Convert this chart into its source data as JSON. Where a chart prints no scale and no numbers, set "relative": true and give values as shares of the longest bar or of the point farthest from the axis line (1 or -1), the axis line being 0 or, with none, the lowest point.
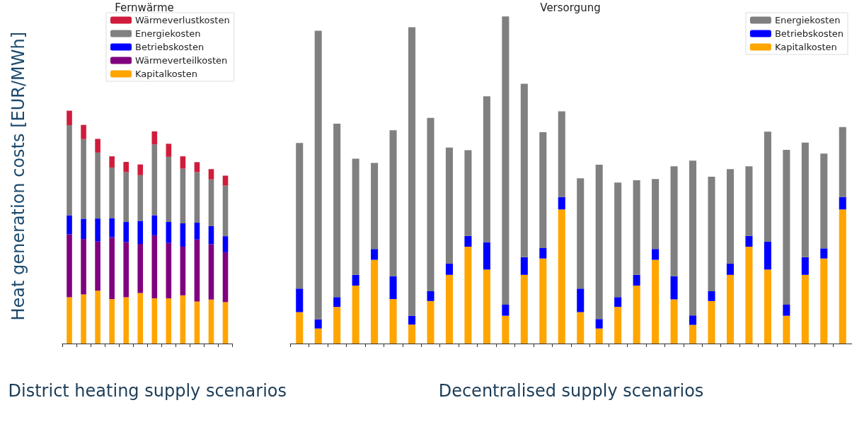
{
  "chart_data": [
    {
      "type": "bar",
      "title": "Fernwärme",
      "ylabel": "Heat generation costs [EUR/MWh]",
      "xlabel": "District heating supply scenarios",
      "categories": [
        null,
        null,
        null,
        null,
        null,
        null,
        null,
        null,
        null,
        null,
        null,
        null
      ],
      "stacked": true,
      "relative": true,
      "legend": "top",
      "series": [
        {
          "name": "Kapitalkosten",
          "color": "#ffa500",
          "values": [
            0.199,
            0.211,
            0.227,
            0.191,
            0.199,
            0.217,
            0.194,
            0.194,
            0.207,
            0.181,
            0.189,
            0.178
          ]
        },
        {
          "name": "Wärmeverteilkosten",
          "color": "#800080",
          "values": [
            0.27,
            0.238,
            0.211,
            0.266,
            0.237,
            0.211,
            0.271,
            0.238,
            0.209,
            0.266,
            0.238,
            0.214
          ]
        },
        {
          "name": "Betriebskosten",
          "color": "#0000ff",
          "values": [
            0.082,
            0.087,
            0.099,
            0.082,
            0.086,
            0.099,
            0.086,
            0.09,
            0.1,
            0.072,
            0.077,
            0.069
          ]
        },
        {
          "name": "Energiekosten",
          "color": "#808080",
          "values": [
            0.387,
            0.342,
            0.283,
            0.217,
            0.214,
            0.196,
            0.304,
            0.28,
            0.235,
            0.217,
            0.201,
            0.217
          ]
        },
        {
          "name": "Wärmeverlustkosten",
          "color": "#d01c3c",
          "values": [
            0.062,
            0.061,
            0.059,
            0.048,
            0.044,
            0.046,
            0.056,
            0.056,
            0.053,
            0.043,
            0.044,
            0.043
          ]
        }
      ]
    },
    {
      "type": "bar",
      "title": "Versorgung",
      "xlabel": "Decentralised supply scenarios",
      "categories": [
        null,
        null,
        null,
        null,
        null,
        null,
        null,
        null,
        null,
        null,
        null,
        null,
        null,
        null,
        null,
        null,
        null,
        null,
        null,
        null,
        null,
        null,
        null,
        null,
        null,
        null,
        null,
        null,
        null,
        null
      ],
      "stacked": true,
      "relative": true,
      "legend": "top right",
      "series": [
        {
          "name": "Kapitalkosten",
          "color": "#ffa500",
          "values": [
            0.096,
            0.046,
            0.112,
            0.177,
            0.256,
            0.136,
            0.058,
            0.13,
            0.21,
            0.296,
            0.226,
            0.085,
            0.21,
            0.26,
            0.41,
            0.096,
            0.046,
            0.112,
            0.177,
            0.256,
            0.135,
            0.057,
            0.13,
            0.21,
            0.296,
            0.226,
            0.085,
            0.21,
            0.26,
            0.41
          ]
        },
        {
          "name": "Betriebskosten",
          "color": "#0000ff",
          "values": [
            0.072,
            0.028,
            0.03,
            0.033,
            0.033,
            0.07,
            0.027,
            0.03,
            0.034,
            0.033,
            0.084,
            0.034,
            0.054,
            0.032,
            0.038,
            0.072,
            0.029,
            0.03,
            0.033,
            0.033,
            0.071,
            0.029,
            0.03,
            0.034,
            0.033,
            0.085,
            0.034,
            0.054,
            0.031,
            0.038
          ]
        },
        {
          "name": "Energiekosten",
          "color": "#808080",
          "values": [
            0.445,
            0.882,
            0.53,
            0.355,
            0.263,
            0.446,
            0.882,
            0.53,
            0.355,
            0.262,
            0.446,
            0.881,
            0.53,
            0.354,
            0.262,
            0.337,
            0.472,
            0.35,
            0.289,
            0.214,
            0.336,
            0.473,
            0.35,
            0.289,
            0.213,
            0.337,
            0.473,
            0.35,
            0.29,
            0.214
          ]
        }
      ]
    }
  ]
}
